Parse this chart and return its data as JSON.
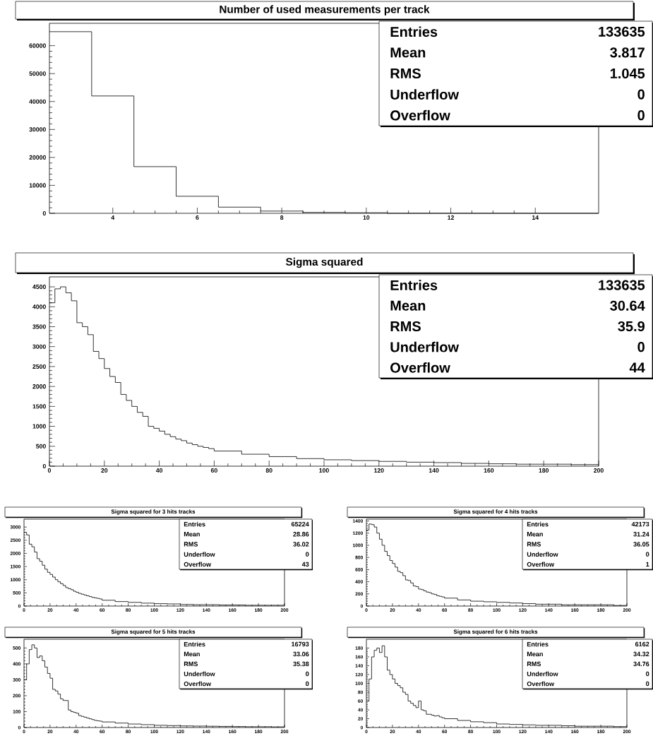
{
  "chart_data": [
    {
      "type": "histogram",
      "title": "Number of used measurements per track",
      "bins": [
        2.5,
        3.5,
        4.5,
        5.5,
        6.5,
        7.5,
        8.5,
        9.5,
        10.5,
        11.5,
        12.5,
        13.5,
        14.5,
        15.5
      ],
      "values": [
        65000,
        42000,
        16700,
        6100,
        2200,
        800,
        300,
        200,
        0,
        0,
        0,
        0,
        0
      ],
      "xlim": [
        2.5,
        15.5
      ],
      "ylim": [
        0,
        68000
      ],
      "xticks": [
        4,
        6,
        8,
        10,
        12,
        14
      ],
      "yticks": [
        0,
        10000,
        20000,
        30000,
        40000,
        50000,
        60000
      ],
      "annotations": [
        "Entries",
        "133635",
        "Mean",
        "3.817",
        "RMS",
        "1.045",
        "Underflow",
        "0",
        "Overflow",
        "0"
      ]
    },
    {
      "type": "histogram",
      "title": "Sigma squared",
      "bins": [
        0,
        2,
        4,
        6,
        8,
        10,
        12,
        14,
        16,
        18,
        20,
        22,
        24,
        26,
        28,
        30,
        32,
        34,
        36,
        38,
        40,
        42,
        44,
        46,
        48,
        50,
        52,
        54,
        56,
        58,
        60,
        70,
        80,
        90,
        100,
        110,
        120,
        130,
        140,
        150,
        160,
        170,
        180,
        190,
        200
      ],
      "values": [
        4100,
        4450,
        4500,
        4350,
        4150,
        3600,
        3500,
        3300,
        2880,
        2700,
        2450,
        2250,
        2100,
        1800,
        1650,
        1500,
        1350,
        1250,
        1000,
        950,
        880,
        800,
        740,
        680,
        640,
        580,
        540,
        500,
        470,
        440,
        380,
        300,
        240,
        190,
        160,
        140,
        120,
        100,
        90,
        70,
        60,
        50,
        50,
        40
      ],
      "xlim": [
        0,
        200
      ],
      "ylim": [
        0,
        4750
      ],
      "xticks": [
        0,
        20,
        40,
        60,
        80,
        100,
        120,
        140,
        160,
        180,
        200
      ],
      "yticks": [
        0,
        500,
        1000,
        1500,
        2000,
        2500,
        3000,
        3500,
        4000,
        4500
      ],
      "annotations": [
        "Entries",
        "133635",
        "Mean",
        "30.64",
        "RMS",
        "35.9",
        "Underflow",
        "0",
        "Overflow",
        "44"
      ]
    },
    {
      "type": "histogram",
      "title": "Sigma squared for 3 hits tracks",
      "bins": [
        0,
        2,
        4,
        6,
        8,
        10,
        12,
        14,
        16,
        18,
        20,
        22,
        24,
        26,
        28,
        30,
        32,
        34,
        36,
        38,
        40,
        42,
        44,
        46,
        48,
        50,
        52,
        54,
        56,
        58,
        60,
        70,
        80,
        90,
        100,
        110,
        120,
        130,
        140,
        150,
        160,
        170,
        180,
        190,
        200
      ],
      "values": [
        2800,
        2700,
        2350,
        2250,
        2050,
        1800,
        1700,
        1550,
        1400,
        1280,
        1200,
        1100,
        1000,
        920,
        850,
        780,
        700,
        660,
        620,
        560,
        520,
        480,
        450,
        420,
        390,
        360,
        330,
        310,
        290,
        270,
        220,
        170,
        140,
        110,
        90,
        80,
        60,
        50,
        50,
        40,
        40,
        30,
        30,
        30
      ],
      "xlim": [
        0,
        200
      ],
      "ylim": [
        0,
        3300
      ],
      "xticks": [
        0,
        20,
        40,
        60,
        80,
        100,
        120,
        140,
        160,
        180,
        200
      ],
      "yticks": [
        0,
        500,
        1000,
        1500,
        2000,
        2500,
        3000
      ],
      "annotations": [
        "Entries",
        "65224",
        "Mean",
        "28.86",
        "RMS",
        "36.02",
        "Underflow",
        "0",
        "Overflow",
        "43"
      ]
    },
    {
      "type": "histogram",
      "title": "Sigma squared for 4 hits tracks",
      "bins": [
        0,
        2,
        4,
        6,
        8,
        10,
        12,
        14,
        16,
        18,
        20,
        22,
        24,
        26,
        28,
        30,
        32,
        34,
        36,
        38,
        40,
        42,
        44,
        46,
        48,
        50,
        52,
        54,
        56,
        58,
        60,
        70,
        80,
        90,
        100,
        110,
        120,
        130,
        140,
        150,
        160,
        170,
        180,
        190,
        200
      ],
      "values": [
        1250,
        1350,
        1340,
        1300,
        1200,
        1100,
        1000,
        900,
        830,
        750,
        700,
        640,
        570,
        550,
        500,
        430,
        420,
        380,
        330,
        320,
        280,
        270,
        250,
        230,
        220,
        200,
        190,
        170,
        160,
        150,
        130,
        100,
        80,
        70,
        60,
        50,
        40,
        30,
        30,
        20,
        20,
        20,
        20,
        10
      ],
      "xlim": [
        0,
        200
      ],
      "ylim": [
        0,
        1430
      ],
      "xticks": [
        0,
        20,
        40,
        60,
        80,
        100,
        120,
        140,
        160,
        180,
        200
      ],
      "yticks": [
        0,
        200,
        400,
        600,
        800,
        1000,
        1200,
        1400
      ],
      "annotations": [
        "Entries",
        "42173",
        "Mean",
        "31.24",
        "RMS",
        "36.05",
        "Underflow",
        "0",
        "Overflow",
        "1"
      ]
    },
    {
      "type": "histogram",
      "title": "Sigma squared for 5 hits tracks",
      "bins": [
        0,
        2,
        4,
        6,
        8,
        10,
        12,
        14,
        16,
        18,
        20,
        22,
        24,
        26,
        28,
        30,
        32,
        34,
        36,
        38,
        40,
        42,
        44,
        46,
        48,
        50,
        52,
        54,
        56,
        58,
        60,
        70,
        80,
        90,
        100,
        110,
        120,
        130,
        140,
        150,
        160,
        170,
        180,
        190,
        200
      ],
      "values": [
        300,
        400,
        490,
        520,
        500,
        440,
        450,
        420,
        380,
        340,
        310,
        240,
        230,
        210,
        180,
        170,
        170,
        110,
        100,
        95,
        90,
        75,
        70,
        65,
        60,
        55,
        50,
        45,
        42,
        40,
        35,
        28,
        22,
        18,
        14,
        12,
        10,
        9,
        8,
        7,
        6,
        5,
        5,
        4
      ],
      "xlim": [
        0,
        200
      ],
      "ylim": [
        0,
        555
      ],
      "xticks": [
        0,
        20,
        40,
        60,
        80,
        100,
        120,
        140,
        160,
        180,
        200
      ],
      "yticks": [
        0,
        100,
        200,
        300,
        400,
        500
      ],
      "annotations": [
        "Entries",
        "16793",
        "Mean",
        "33.06",
        "RMS",
        "35.38",
        "Underflow",
        "0",
        "Overflow",
        "0"
      ]
    },
    {
      "type": "histogram",
      "title": "Sigma squared for 6 hits tracks",
      "bins": [
        0,
        2,
        4,
        6,
        8,
        10,
        12,
        14,
        16,
        18,
        20,
        22,
        24,
        26,
        28,
        30,
        32,
        34,
        36,
        38,
        40,
        42,
        44,
        46,
        48,
        50,
        52,
        54,
        56,
        58,
        60,
        70,
        80,
        90,
        100,
        110,
        120,
        130,
        140,
        150,
        160,
        170,
        180,
        190,
        200
      ],
      "values": [
        60,
        110,
        160,
        175,
        180,
        170,
        185,
        160,
        130,
        120,
        110,
        100,
        95,
        90,
        80,
        75,
        60,
        55,
        50,
        45,
        60,
        40,
        38,
        30,
        30,
        28,
        26,
        27,
        24,
        22,
        20,
        16,
        13,
        11,
        8,
        7,
        6,
        5,
        5,
        4,
        3,
        3,
        3,
        2
      ],
      "xlim": [
        0,
        200
      ],
      "ylim": [
        0,
        200
      ],
      "xticks": [
        0,
        20,
        40,
        60,
        80,
        100,
        120,
        140,
        160,
        180,
        200
      ],
      "yticks": [
        0,
        20,
        40,
        60,
        80,
        100,
        120,
        140,
        160,
        180
      ],
      "annotations": [
        "Entries",
        "6162",
        "Mean",
        "34.32",
        "RMS",
        "34.76",
        "Underflow",
        "0",
        "Overflow",
        "0"
      ]
    }
  ]
}
